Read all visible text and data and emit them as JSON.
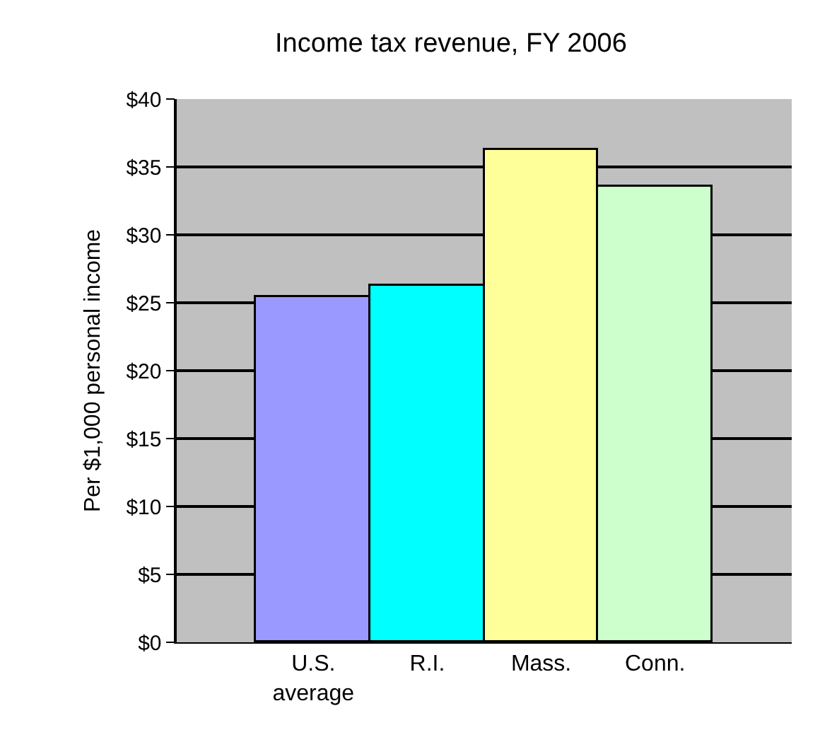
{
  "chart_data": {
    "type": "bar",
    "title": "Income tax revenue, FY 2006",
    "ylabel": "Per $1,000 personal income",
    "categories": [
      "U.S. average",
      "R.I.",
      "Mass.",
      "Conn."
    ],
    "values": [
      25.4,
      26.2,
      36.3,
      33.5
    ],
    "colors": [
      "#9999ff",
      "#00ffff",
      "#ffff99",
      "#ccffcc"
    ],
    "ylim": [
      0,
      40
    ],
    "yticks": [
      {
        "value": 0,
        "label": "$0"
      },
      {
        "value": 5,
        "label": "$5"
      },
      {
        "value": 10,
        "label": "$10"
      },
      {
        "value": 15,
        "label": "$15"
      },
      {
        "value": 20,
        "label": "$20"
      },
      {
        "value": 25,
        "label": "$25"
      },
      {
        "value": 30,
        "label": "$30"
      },
      {
        "value": 35,
        "label": "$35"
      },
      {
        "value": 40,
        "label": "$40"
      }
    ],
    "grid": "y",
    "legend": false
  }
}
